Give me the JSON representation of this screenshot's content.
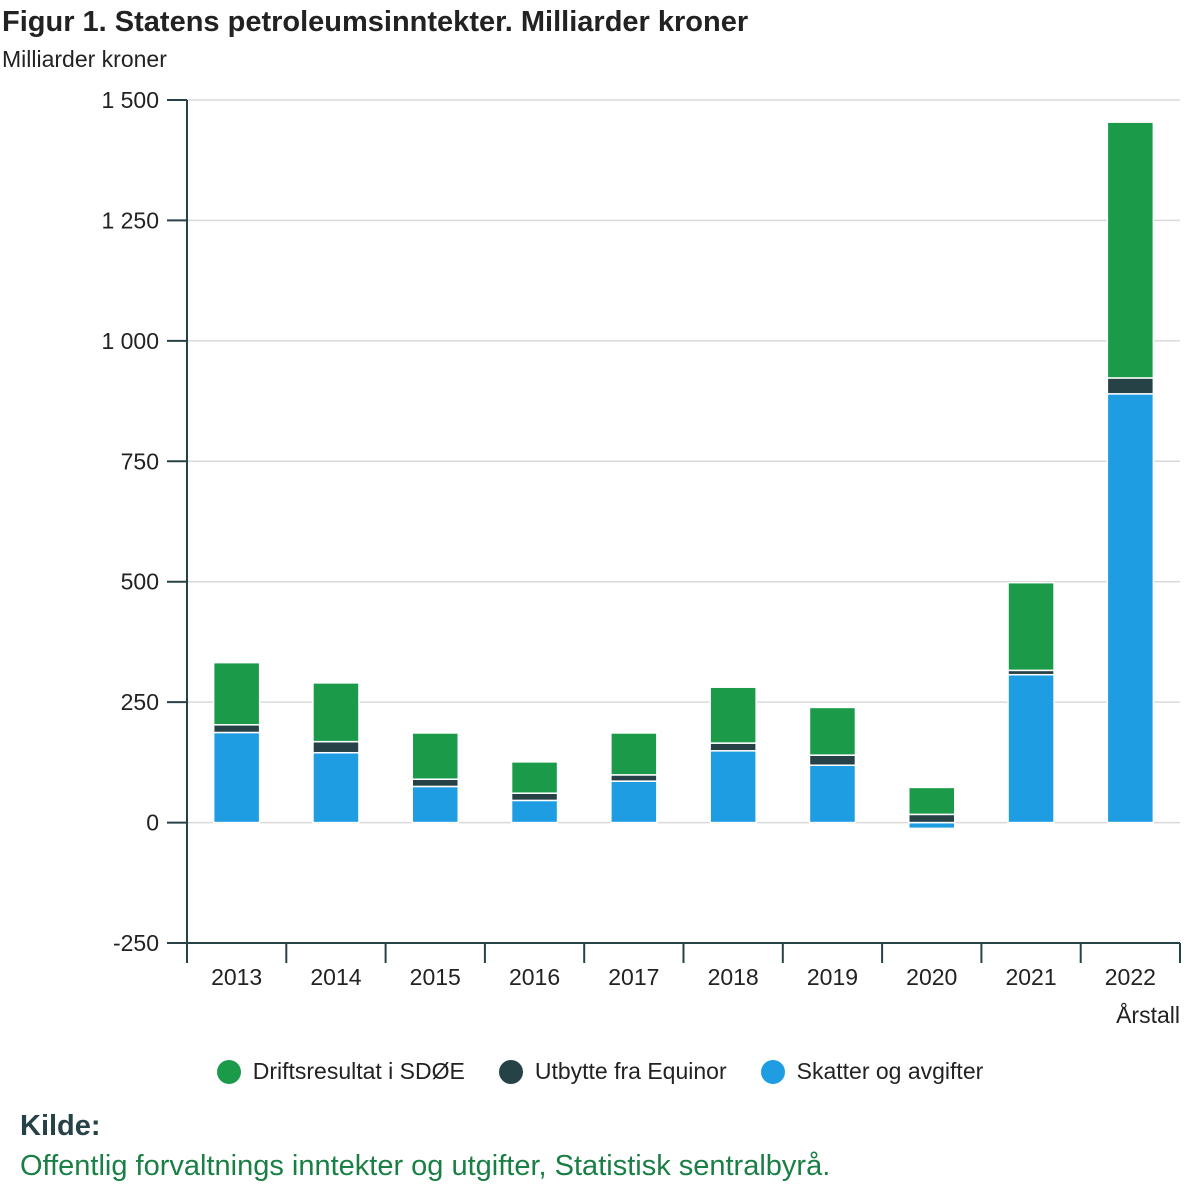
{
  "title": "Figur 1. Statens petroleumsinntekter. Milliarder kroner",
  "unit_label": "Milliarder kroner",
  "source_label": "Kilde:",
  "source_text": "Offentlig forvaltnings inntekter og utgifter, Statistisk sentralbyrå.",
  "chart_data": {
    "type": "bar",
    "stacked": true,
    "title": "Figur 1. Statens petroleumsinntekter. Milliarder kroner",
    "ylabel": "Milliarder kroner",
    "xlabel": "Årstall",
    "ylim": [
      -250,
      1500
    ],
    "yticks": [
      -250,
      0,
      250,
      500,
      750,
      1000,
      1250,
      1500
    ],
    "ytick_labels": [
      "-250",
      "0",
      "250",
      "500",
      "750",
      "1 000",
      "1 250",
      "1 500"
    ],
    "categories": [
      "2013",
      "2014",
      "2015",
      "2016",
      "2017",
      "2018",
      "2019",
      "2020",
      "2021",
      "2022"
    ],
    "grid": true,
    "legend_position": "bottom",
    "series": [
      {
        "name": "Skatter og avgifter",
        "color": "#1e9de3",
        "values": [
          187,
          145,
          75,
          46,
          86,
          149,
          119,
          -12,
          307,
          890
        ]
      },
      {
        "name": "Utbytte fra Equinor",
        "color": "#274247",
        "values": [
          16,
          23,
          15,
          15,
          13,
          16,
          21,
          17,
          9,
          33
        ]
      },
      {
        "name": "Driftsresultat i SDØE",
        "color": "#1b9b4a",
        "values": [
          129,
          122,
          96,
          65,
          87,
          116,
          99,
          56,
          182,
          531
        ]
      }
    ],
    "legend_order": [
      "Driftsresultat i SDØE",
      "Utbytte fra Equinor",
      "Skatter og avgifter"
    ]
  }
}
